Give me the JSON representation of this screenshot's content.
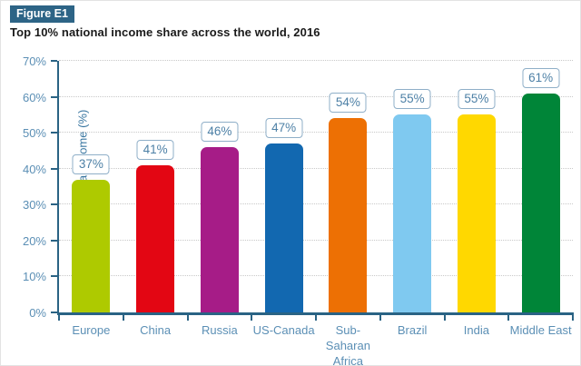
{
  "figure": {
    "badge_label": "Figure E1",
    "title": "Top 10% national income share across the world, 2016"
  },
  "chart_data": {
    "type": "bar",
    "title": "Top 10% national income share across the world, 2016",
    "categories": [
      "Europe",
      "China",
      "Russia",
      "US-Canada",
      "Sub-Saharan Africa",
      "Brazil",
      "India",
      "Middle East"
    ],
    "category_display_labels": [
      "Europe",
      "China",
      "Russia",
      "US-Canada",
      "Sub-\nSaharan\nAfrica",
      "Brazil",
      "India",
      "Middle East"
    ],
    "values": [
      37,
      41,
      46,
      47,
      54,
      55,
      55,
      61
    ],
    "value_labels": [
      "37%",
      "41%",
      "46%",
      "47%",
      "54%",
      "55%",
      "55%",
      "61%"
    ],
    "bar_colors": [
      "#aeca00",
      "#e30613",
      "#a61c87",
      "#1268b0",
      "#ed7004",
      "#7fc9f0",
      "#ffd800",
      "#008538"
    ],
    "xlabel": "",
    "ylabel": "Share of national income (%)",
    "ylim": [
      0,
      70
    ],
    "ytick_step": 10,
    "ytick_labels": [
      "0%",
      "10%",
      "20%",
      "30%",
      "40%",
      "50%",
      "60%",
      "70%"
    ],
    "grid": "horizontal-dotted",
    "legend_position": "none"
  },
  "colors": {
    "badge_bg": "#2d6486",
    "badge_text": "#ffffff",
    "axis_line": "#2a6384",
    "tick_text": "#5b8fb5",
    "y_axis_title_text": "#3c78a2",
    "value_box_border": "#8fafc8",
    "value_box_text": "#4d80a6",
    "gridline": "#c9c9c9",
    "title_text": "#1a1a1a"
  }
}
